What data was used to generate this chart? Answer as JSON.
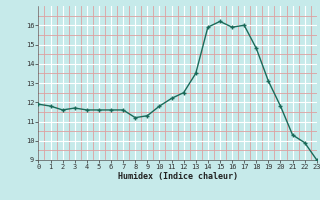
{
  "x": [
    0,
    1,
    2,
    3,
    4,
    5,
    6,
    7,
    8,
    9,
    10,
    11,
    12,
    13,
    14,
    15,
    16,
    17,
    18,
    19,
    20,
    21,
    22,
    23
  ],
  "y": [
    11.9,
    11.8,
    11.6,
    11.7,
    11.6,
    11.6,
    11.6,
    11.6,
    11.2,
    11.3,
    11.8,
    12.2,
    12.5,
    13.5,
    15.9,
    16.2,
    15.9,
    16.0,
    14.8,
    13.1,
    11.8,
    10.3,
    9.9,
    9.0
  ],
  "xlabel": "Humidex (Indice chaleur)",
  "ylim": [
    9,
    17
  ],
  "xlim": [
    0,
    23
  ],
  "yticks": [
    9,
    10,
    11,
    12,
    13,
    14,
    15,
    16
  ],
  "xticks": [
    0,
    1,
    2,
    3,
    4,
    5,
    6,
    7,
    8,
    9,
    10,
    11,
    12,
    13,
    14,
    15,
    16,
    17,
    18,
    19,
    20,
    21,
    22,
    23
  ],
  "line_color": "#1a6b5a",
  "bg_color": "#c6eaea",
  "grid_color_major": "#ffffff",
  "grid_color_minor": "#dda0a0"
}
